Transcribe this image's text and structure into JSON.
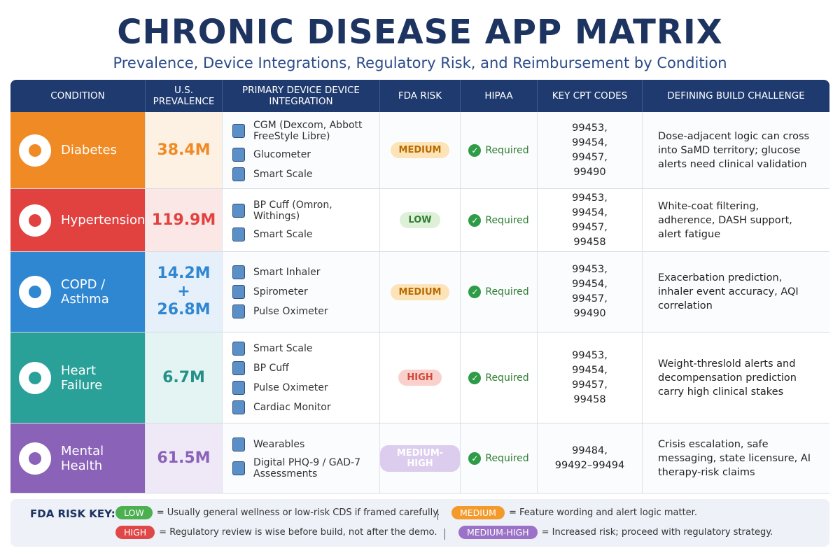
{
  "title": "CHRONIC DISEASE APP MATRIX",
  "subtitle": "Prevalence, Device Integrations, Regulatory Risk, and Reimbursement by Condition",
  "table": {
    "headers": [
      "CONDITION",
      "U.S. PREVALENCE",
      "PRIMARY DEVICE DEVICE INTEGRATION",
      "FDA RISK",
      "HIPAA",
      "KEY CPT CODES",
      "DEFINING BUILD CHALLENGE"
    ],
    "rows": [
      {
        "condition": "Diabetes",
        "prevalence": "38.4M",
        "devices": [
          "CGM (Dexcom, Abbott FreeStyle Libre)",
          "Glucometer",
          "Smart Scale"
        ],
        "fda_risk": "MEDIUM",
        "hipaa": "Required",
        "cpt": "99453, 99454, 99457, 99490",
        "challenge": "Dose-adjacent logic can cross into SaMD territory; glucose alerts need clinical validation"
      },
      {
        "condition": "Hypertension",
        "prevalence": "119.9M",
        "devices": [
          "BP Cuff (Omron, Withings)",
          "Smart Scale"
        ],
        "fda_risk": "LOW",
        "hipaa": "Required",
        "cpt": "99453, 99454, 99457, 99458",
        "challenge": "White-coat filtering, adherence, DASH support, alert fatigue"
      },
      {
        "condition": "COPD / Asthma",
        "prevalence": "14.2M + 26.8M",
        "devices": [
          "Smart Inhaler",
          "Spirometer",
          "Pulse Oximeter"
        ],
        "fda_risk": "MEDIUM",
        "hipaa": "Required",
        "cpt": "99453, 99454, 99457, 99490",
        "challenge": "Exacerbation prediction, inhaler event accuracy, AQI correlation"
      },
      {
        "condition": "Heart Failure",
        "prevalence": "6.7M",
        "devices": [
          "Smart Scale",
          "BP Cuff",
          "Pulse Oximeter",
          "Cardiac Monitor"
        ],
        "fda_risk": "HIGH",
        "hipaa": "Required",
        "cpt": "99453, 99454, 99457, 99458",
        "challenge": "Weight-threslold alerts and decompensation prediction carry high clinical stakes"
      },
      {
        "condition": "Mental Health",
        "prevalence": "61.5M",
        "devices": [
          "Wearables",
          "Digital PHQ-9 / GAD-7 Assessments"
        ],
        "fda_risk": "MEDIUM-HIGH",
        "hipaa": "Required",
        "cpt": "99484, 99492–99494",
        "challenge": "Crisis escalation, safe messaging, state licensure, AI therapy-risk claims"
      }
    ]
  },
  "key": {
    "label": "FDA RISK KEY:",
    "items": [
      {
        "badge": "LOW",
        "text": "= Usually general wellness or low-risk CDS if framed carefully."
      },
      {
        "badge": "MEDIUM",
        "text": "= Feature wording and alert logic matter."
      },
      {
        "badge": "HIGH",
        "text": "= Regulatory review is wise before build, not after the demo."
      },
      {
        "badge": "MEDIUM-HIGH",
        "text": "= Increased risk; proceed with regulatory strategy."
      }
    ]
  }
}
